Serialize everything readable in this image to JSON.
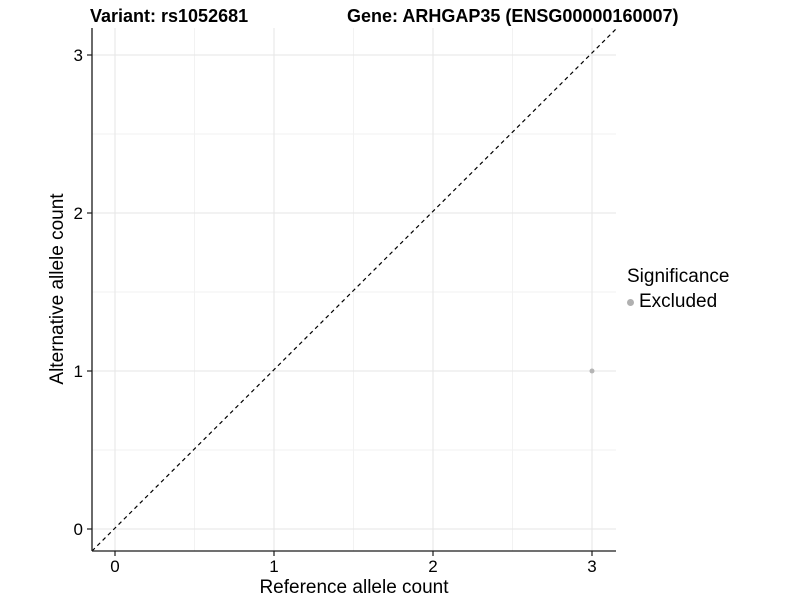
{
  "chart_data": {
    "type": "scatter",
    "titles": {
      "left": "Variant: rs1052681",
      "right": "Gene: ARHGAP35 (ENSG00000160007)"
    },
    "xlabel": "Reference allele count",
    "ylabel": "Alternative allele count",
    "xlim": [
      -0.15,
      3.15
    ],
    "ylim": [
      -0.15,
      3.15
    ],
    "x_ticks": [
      0,
      1,
      2,
      3
    ],
    "y_ticks": [
      0,
      1,
      2,
      3
    ],
    "grid": "major and minor, minor at 0.5 steps",
    "colors": {
      "major_grid": "#e6e6e6",
      "minor_grid": "#f2f2f2",
      "axis_line": "#1a1a1a",
      "text": "#000000",
      "excluded_point": "#b5b5b5"
    },
    "identity_line": {
      "equation": "y = x",
      "style": "dashed",
      "color": "#000000"
    },
    "legend": {
      "title": "Significance",
      "position": "right",
      "entries": [
        {
          "label": "Excluded",
          "color": "#b0b0b0"
        }
      ]
    },
    "series": [
      {
        "name": "Excluded",
        "color": "#b5b5b5",
        "point_radius": 2.5,
        "points": [
          [
            3,
            1
          ]
        ]
      }
    ]
  }
}
